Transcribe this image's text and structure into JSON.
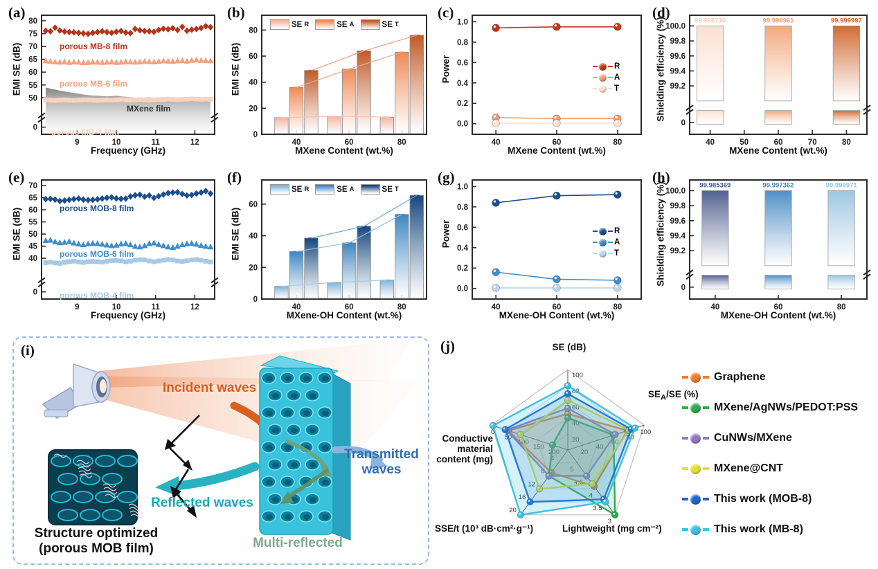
{
  "panels": {
    "a": {
      "tag": "(a)",
      "ylabel": "EMI SE (dB)",
      "xlabel": "Frequency (GHz)"
    },
    "b": {
      "tag": "(b)",
      "ylabel": "EMI SE (dB)",
      "xlabel": "MXene Content (wt.%)"
    },
    "c": {
      "tag": "(c)",
      "ylabel": "Power",
      "xlabel": "MXene Content (wt.%)"
    },
    "d": {
      "tag": "(d)",
      "ylabel": "Shielding efficiency (%)",
      "xlabel": "MXene Content (wt.%)"
    },
    "e": {
      "tag": "(e)",
      "ylabel": "EMI SE (dB)",
      "xlabel": "Frequency (GHz)"
    },
    "f": {
      "tag": "(f)",
      "ylabel": "EMI SE (dB)",
      "xlabel": "MXene-OH Content (wt.%)"
    },
    "g": {
      "tag": "(g)",
      "ylabel": "Power",
      "xlabel": "MXene-OH Content (wt.%)"
    },
    "h": {
      "tag": "(h)",
      "ylabel": "Shielding efficiency (%)",
      "xlabel": "MXene-OH Content (wt.%)"
    },
    "i": {
      "tag": "(i)",
      "incident": "Incident waves",
      "reflected": "Reflected waves",
      "transmitted_1": "Transmitted",
      "transmitted_2": "waves",
      "multi": "Multi-reflected",
      "caption_1": "Structure optimized",
      "caption_2": "(porous MOB film)",
      "incident_color": "#d85c1e",
      "reflected_color": "#1aa8b8",
      "transmitted_color": "#2e6db4",
      "multi_color": "#7fa98d"
    },
    "j": {
      "tag": "(j)",
      "axis_top": "SE (dB)",
      "axis_right_pre": "SE",
      "axis_right_sub": "A",
      "axis_right_post": "/SE (%)",
      "axis_br": "Lightweight (mg cm⁻²)",
      "axis_bl": "SSE/t (10³ dB·cm²·g⁻¹)",
      "axis_left_1": "Conductive",
      "axis_left_2": "material",
      "axis_left_3": "content (mg)"
    }
  },
  "chart_data": [
    {
      "id": "a",
      "type": "scatter",
      "xlabel": "Frequency (GHz)",
      "ylabel": "EMI SE (dB)",
      "x_range": [
        8.2,
        12.4
      ],
      "x_ticks": [
        9,
        10,
        11,
        12
      ],
      "y_ticks": [
        50,
        55,
        60,
        65,
        70,
        75,
        80
      ],
      "y_zero_label": "0",
      "y_main_range": [
        46,
        80
      ],
      "y_break": true,
      "series": [
        {
          "name": "porous MB-8  film",
          "marker": "diamond",
          "color": "#b5341c",
          "values": [
            76.1,
            75.9,
            77.3,
            76.2,
            75.8,
            75.6,
            75.5,
            75.3,
            75.1,
            74.9,
            75.3,
            75.6,
            75.9,
            75.6,
            75.3,
            75.7,
            76.0,
            75.4,
            75.2,
            76.8,
            76.3,
            76.0,
            75.9,
            75.7,
            76.4,
            76.9,
            76.7,
            77.1,
            76.4,
            77.6,
            76.1,
            76.5,
            76.8,
            77.2,
            77.9,
            77.5
          ]
        },
        {
          "name": "porous MB-6 film",
          "marker": "triangle",
          "color": "#f4a17c",
          "values": [
            64.4,
            64.2,
            64.0,
            63.9,
            64.1,
            63.8,
            64.0,
            63.9,
            63.7,
            63.8,
            64.0,
            63.9,
            63.8,
            63.9,
            64.0,
            63.8,
            63.9,
            64.1,
            64.0,
            63.9,
            64.0,
            64.2,
            64.1,
            64.0,
            64.2,
            64.4,
            64.3,
            64.2,
            64.4,
            64.5,
            64.3,
            64.6,
            64.8,
            64.6,
            64.5,
            64.4
          ]
        },
        {
          "name": "MXene  film",
          "marker": "area",
          "color": "#8f8f8f",
          "values": [
            54.0,
            53.6,
            53.2,
            52.8,
            52.5,
            52.2,
            51.9,
            51.6,
            51.3,
            51.1,
            50.9,
            50.8,
            50.7,
            50.6,
            50.7,
            50.8,
            50.6,
            50.4,
            50.2,
            50.1,
            50.0,
            50.1,
            50.2,
            50.0,
            49.8,
            49.7,
            49.6,
            49.5,
            49.4,
            49.3,
            49.2,
            49.0,
            48.9,
            48.8,
            48.8,
            48.7
          ]
        },
        {
          "name": "porous MB-4  film",
          "marker": "square",
          "color": "#f8d3bd",
          "values": [
            49.2,
            49.1,
            49.0,
            49.1,
            49.2,
            49.1,
            49.0,
            49.1,
            49.2,
            49.2,
            49.1,
            49.0,
            49.1,
            49.2,
            49.1,
            49.2,
            49.3,
            49.2,
            49.1,
            49.2,
            49.3,
            49.2,
            49.1,
            49.2,
            49.3,
            49.4,
            49.5,
            49.4,
            49.3,
            49.4,
            49.5,
            49.6,
            49.5,
            49.4,
            49.5,
            49.4
          ]
        }
      ]
    },
    {
      "id": "b",
      "type": "bar",
      "categories": [
        40,
        60,
        80
      ],
      "ylim": [
        0,
        85
      ],
      "y_ticks": [
        0,
        20,
        40,
        60,
        80
      ],
      "series": [
        {
          "label_base": "SE",
          "label_sub": "R",
          "color_top": "#f3b59d",
          "line_color": "#f6c3ad",
          "values": [
            12.8,
            13.8,
            13.2
          ]
        },
        {
          "label_base": "SE",
          "label_sub": "A",
          "color_top": "#ef8a57",
          "line_color": "#f4a584",
          "values": [
            36,
            50,
            63
          ]
        },
        {
          "label_base": "SE",
          "label_sub": "T",
          "color_top": "#c05a28",
          "line_color": "#ec9e7d",
          "values": [
            49,
            64,
            76
          ]
        }
      ]
    },
    {
      "id": "c",
      "type": "line",
      "categories": [
        40,
        60,
        80
      ],
      "y_ticks": [
        0.0,
        0.2,
        0.4,
        0.6,
        0.8,
        1.0
      ],
      "series": [
        {
          "name": "R",
          "color": "#c0391b",
          "values": [
            0.94,
            0.95,
            0.95
          ]
        },
        {
          "name": "A",
          "color": "#f29b76",
          "values": [
            0.06,
            0.05,
            0.05
          ]
        },
        {
          "name": "T",
          "color": "#fbe0d0",
          "values": [
            0.005,
            0.005,
            0.005
          ]
        }
      ]
    },
    {
      "id": "d",
      "type": "bar-broken",
      "categories": [
        40,
        60,
        80
      ],
      "x_ticks": [
        40,
        50,
        60,
        70,
        80
      ],
      "x_axis_range": [
        35,
        85
      ],
      "y_ticks": [
        99.2,
        99.4,
        99.6,
        99.8,
        100.0
      ],
      "y_zero_label": "0",
      "bars": [
        {
          "label": "99.998710",
          "color": "#fbe0d0",
          "label_color": "#f8cdb6"
        },
        {
          "label": "99.999961",
          "color": "#f2a87f",
          "label_color": "#f29e6d"
        },
        {
          "label": "99.999997",
          "color": "#cf6a32",
          "label_color": "#d3601f"
        }
      ]
    },
    {
      "id": "e",
      "type": "scatter",
      "x_range": [
        8.2,
        12.4
      ],
      "x_ticks": [
        9,
        10,
        11,
        12
      ],
      "y_ticks": [
        40,
        45,
        50,
        55,
        60,
        65,
        70
      ],
      "y_zero_label": "0",
      "y_main_range": [
        34,
        70
      ],
      "y_break": true,
      "series": [
        {
          "name": "porous MOB-8  film",
          "marker": "diamond",
          "color": "#1b4f8f",
          "values": [
            64.4,
            64.5,
            64.2,
            63.6,
            63.8,
            64.1,
            64.4,
            64.6,
            64.2,
            64.0,
            64.1,
            64.3,
            64.6,
            64.9,
            65.1,
            64.7,
            64.5,
            64.6,
            65.5,
            66.0,
            66.2,
            65.4,
            65.9,
            64.9,
            65.6,
            66.3,
            66.9,
            67.1,
            67.2,
            66.5,
            65.9,
            66.1,
            66.7,
            67.1,
            67.7,
            66.7
          ]
        },
        {
          "name": "porous MOB-6 film",
          "marker": "triangle",
          "color": "#3f8ecb",
          "values": [
            47.3,
            47.5,
            46.8,
            46.4,
            46.6,
            46.9,
            46.3,
            45.9,
            45.6,
            46.0,
            46.2,
            46.1,
            45.8,
            45.5,
            45.2,
            45.4,
            45.9,
            46.1,
            45.6,
            44.9,
            44.7,
            45.2,
            46.1,
            46.3,
            45.7,
            45.2,
            44.7,
            44.5,
            45.0,
            45.6,
            46.0,
            46.2,
            45.8,
            45.3,
            44.9,
            44.7
          ]
        },
        {
          "name": "porous MOB-4 film",
          "marker": "square",
          "color": "#a6c9e6",
          "values": [
            38.2,
            38.4,
            38.1,
            37.9,
            38.3,
            38.6,
            38.8,
            38.5,
            38.3,
            38.6,
            38.7,
            38.6,
            38.4,
            38.8,
            39.0,
            39.1,
            38.9,
            38.6,
            38.8,
            39.2,
            39.4,
            39.3,
            38.9,
            38.6,
            38.9,
            39.2,
            39.5,
            39.3,
            38.9,
            38.7,
            39.0,
            39.3,
            39.5,
            39.2,
            38.8,
            38.5
          ]
        }
      ]
    },
    {
      "id": "f",
      "type": "bar",
      "categories": [
        40,
        60,
        80
      ],
      "ylim": [
        0,
        70
      ],
      "y_ticks": [
        0,
        20,
        40,
        60
      ],
      "series": [
        {
          "label_base": "SE",
          "label_sub": "R",
          "color_top": "#7fb2d9",
          "line_color": "#a9cde9",
          "values": [
            8,
            10.5,
            12
          ]
        },
        {
          "label_base": "SE",
          "label_sub": "A",
          "color_top": "#3e86c0",
          "line_color": "#8fc0e8",
          "values": [
            30,
            35.5,
            53.5
          ]
        },
        {
          "label_base": "SE",
          "label_sub": "T",
          "color_top": "#16477e",
          "line_color": "#6aa8d8",
          "values": [
            38.5,
            46,
            65.5
          ]
        }
      ]
    },
    {
      "id": "g",
      "type": "line",
      "categories": [
        40,
        60,
        80
      ],
      "y_ticks": [
        0.0,
        0.2,
        0.4,
        0.6,
        0.8,
        1.0
      ],
      "series": [
        {
          "name": "R",
          "color": "#1b4f8f",
          "values": [
            0.84,
            0.91,
            0.92
          ]
        },
        {
          "name": "A",
          "color": "#3f8ecb",
          "values": [
            0.16,
            0.09,
            0.08
          ]
        },
        {
          "name": "T",
          "color": "#b8d6ec",
          "values": [
            0.005,
            0.005,
            0.005
          ]
        }
      ]
    },
    {
      "id": "h",
      "type": "bar-broken",
      "categories": [
        40,
        60,
        80
      ],
      "x_ticks": [
        40,
        60,
        80
      ],
      "x_axis_range": [
        33,
        87
      ],
      "y_ticks": [
        99.2,
        99.4,
        99.6,
        99.8,
        100.0
      ],
      "y_zero_label": "0",
      "bars": [
        {
          "label": "99.985369",
          "color": "#51608f",
          "label_color": "#3d5a98"
        },
        {
          "label": "99.997362",
          "color": "#4f8fc7",
          "label_color": "#3d85c8"
        },
        {
          "label": "99.999971",
          "color": "#9cc6e2",
          "label_color": "#8fc2e4"
        }
      ]
    },
    {
      "id": "j",
      "type": "radar",
      "axes": [
        {
          "label": "SE (dB)",
          "min": 0,
          "max": 100,
          "ticks": [
            20,
            40,
            60,
            80,
            100
          ]
        },
        {
          "label": "SEA/SE (%)",
          "min": 0,
          "max": 100,
          "ticks": [
            20,
            40,
            60,
            80,
            100
          ]
        },
        {
          "label": "Lightweight (mg cm⁻²)",
          "min": 5.5,
          "max": 3,
          "ticks": [
            5,
            4.5,
            4,
            3.5,
            3
          ]
        },
        {
          "label": "SSE/t (10³ dB·cm²·g⁻¹)",
          "min": 0,
          "max": 20,
          "ticks": [
            4,
            8,
            12,
            16,
            20
          ]
        },
        {
          "label": "Conductive material content (mg)",
          "min": 250,
          "max": 0,
          "ticks": [
            200,
            150,
            100,
            50,
            0
          ]
        }
      ],
      "series": [
        {
          "name": "Graphene",
          "color": "#ed7d31",
          "values": [
            45,
            78,
            4.1,
            7,
            55
          ]
        },
        {
          "name": "MXene/AgNWs/PEDOT:PSS",
          "color": "#2eab4f",
          "values": [
            40,
            60,
            3.0,
            8,
            200
          ]
        },
        {
          "name": "CuNWs/MXene",
          "color": "#8f7bbf",
          "values": [
            52,
            62,
            4.5,
            8,
            50
          ]
        },
        {
          "name": "MXene@CNT",
          "color": "#e3e031",
          "values": [
            62,
            80,
            4.2,
            12,
            95
          ]
        },
        {
          "name": "This work (MOB-8)",
          "color": "#1f66d0",
          "values": [
            70,
            83,
            3.6,
            16,
            45
          ]
        },
        {
          "name": "This work (MB-8)",
          "color": "#3fc1e3",
          "values": [
            80,
            88,
            3.5,
            20,
            5
          ]
        }
      ]
    }
  ]
}
